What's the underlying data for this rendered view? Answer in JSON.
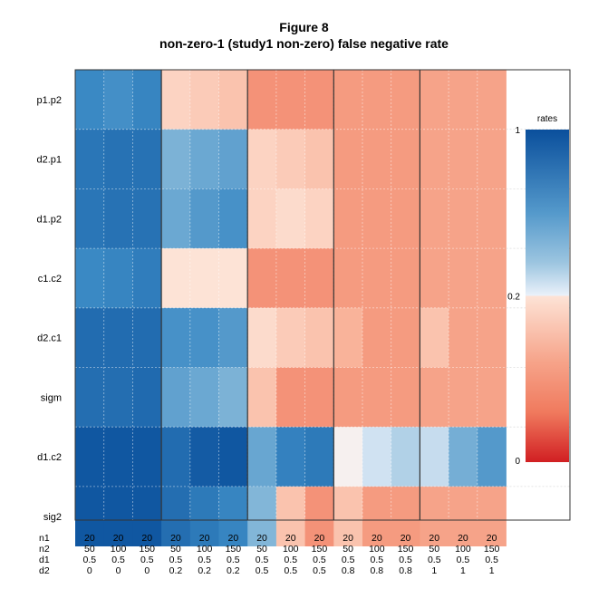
{
  "figure": {
    "title": "Figure 8",
    "subtitle": "non-zero-1 (study1 non-zero) false negative rate"
  },
  "chart_data": {
    "type": "heatmap",
    "rows": [
      "p1.p2",
      "d2.p1",
      "d1.p2",
      "c1.c2",
      "d2.c1",
      "sigm",
      "d1.c2",
      "sig2"
    ],
    "x_factor_names": [
      "n1",
      "n2",
      "d1",
      "d2"
    ],
    "columns": [
      {
        "n1": "20",
        "n2": "50",
        "d1": "0.5",
        "d2": "0"
      },
      {
        "n1": "20",
        "n2": "100",
        "d1": "0.5",
        "d2": "0"
      },
      {
        "n1": "20",
        "n2": "150",
        "d1": "0.5",
        "d2": "0"
      },
      {
        "n1": "20",
        "n2": "50",
        "d1": "0.5",
        "d2": "0.2"
      },
      {
        "n1": "20",
        "n2": "100",
        "d1": "0.5",
        "d2": "0.2"
      },
      {
        "n1": "20",
        "n2": "150",
        "d1": "0.5",
        "d2": "0.2"
      },
      {
        "n1": "20",
        "n2": "50",
        "d1": "0.5",
        "d2": "0.5"
      },
      {
        "n1": "20",
        "n2": "100",
        "d1": "0.5",
        "d2": "0.5"
      },
      {
        "n1": "20",
        "n2": "150",
        "d1": "0.5",
        "d2": "0.5"
      },
      {
        "n1": "20",
        "n2": "50",
        "d1": "0.5",
        "d2": "0.8"
      },
      {
        "n1": "20",
        "n2": "100",
        "d1": "0.5",
        "d2": "0.8"
      },
      {
        "n1": "20",
        "n2": "150",
        "d1": "0.5",
        "d2": "0.8"
      },
      {
        "n1": "20",
        "n2": "50",
        "d1": "0.5",
        "d2": "1"
      },
      {
        "n1": "20",
        "n2": "100",
        "d1": "0.5",
        "d2": "1"
      },
      {
        "n1": "20",
        "n2": "150",
        "d1": "0.5",
        "d2": "1"
      }
    ],
    "values": [
      [
        0.7,
        0.67,
        0.72,
        0.16,
        0.15,
        0.14,
        0.08,
        0.08,
        0.08,
        0.09,
        0.09,
        0.09,
        0.1,
        0.1,
        0.1
      ],
      [
        0.8,
        0.82,
        0.82,
        0.5,
        0.55,
        0.58,
        0.16,
        0.15,
        0.14,
        0.09,
        0.09,
        0.09,
        0.1,
        0.1,
        0.1
      ],
      [
        0.8,
        0.82,
        0.82,
        0.55,
        0.62,
        0.66,
        0.16,
        0.17,
        0.16,
        0.09,
        0.09,
        0.09,
        0.1,
        0.1,
        0.1
      ],
      [
        0.7,
        0.72,
        0.76,
        0.18,
        0.18,
        0.18,
        0.08,
        0.08,
        0.08,
        0.09,
        0.09,
        0.09,
        0.1,
        0.1,
        0.1
      ],
      [
        0.85,
        0.85,
        0.85,
        0.66,
        0.66,
        0.62,
        0.17,
        0.15,
        0.14,
        0.12,
        0.09,
        0.09,
        0.14,
        0.1,
        0.1
      ],
      [
        0.84,
        0.84,
        0.86,
        0.58,
        0.55,
        0.5,
        0.14,
        0.08,
        0.08,
        0.09,
        0.09,
        0.09,
        0.1,
        0.1,
        0.1
      ],
      [
        0.96,
        0.96,
        0.96,
        0.85,
        0.94,
        0.96,
        0.56,
        0.74,
        0.78,
        0.2,
        0.32,
        0.38,
        0.34,
        0.52,
        0.62
      ],
      [
        0.96,
        0.96,
        0.96,
        0.84,
        0.78,
        0.72,
        0.48,
        0.14,
        0.08,
        0.14,
        0.09,
        0.09,
        0.1,
        0.1,
        0.1
      ]
    ],
    "group_separators_after_columns": [
      3,
      6,
      9,
      12
    ],
    "grid": true,
    "legend": {
      "title": "rates",
      "tick_labels": [
        "1",
        "0.2",
        "0"
      ],
      "position": "right",
      "colors": [
        "#0a4f9c",
        "#3a89c4",
        "#8cbcdb",
        "#dbe8f5",
        "#f3f6fc",
        "#fde3d6",
        "#f9b39a",
        "#f07a5e",
        "#d11f22"
      ]
    }
  }
}
